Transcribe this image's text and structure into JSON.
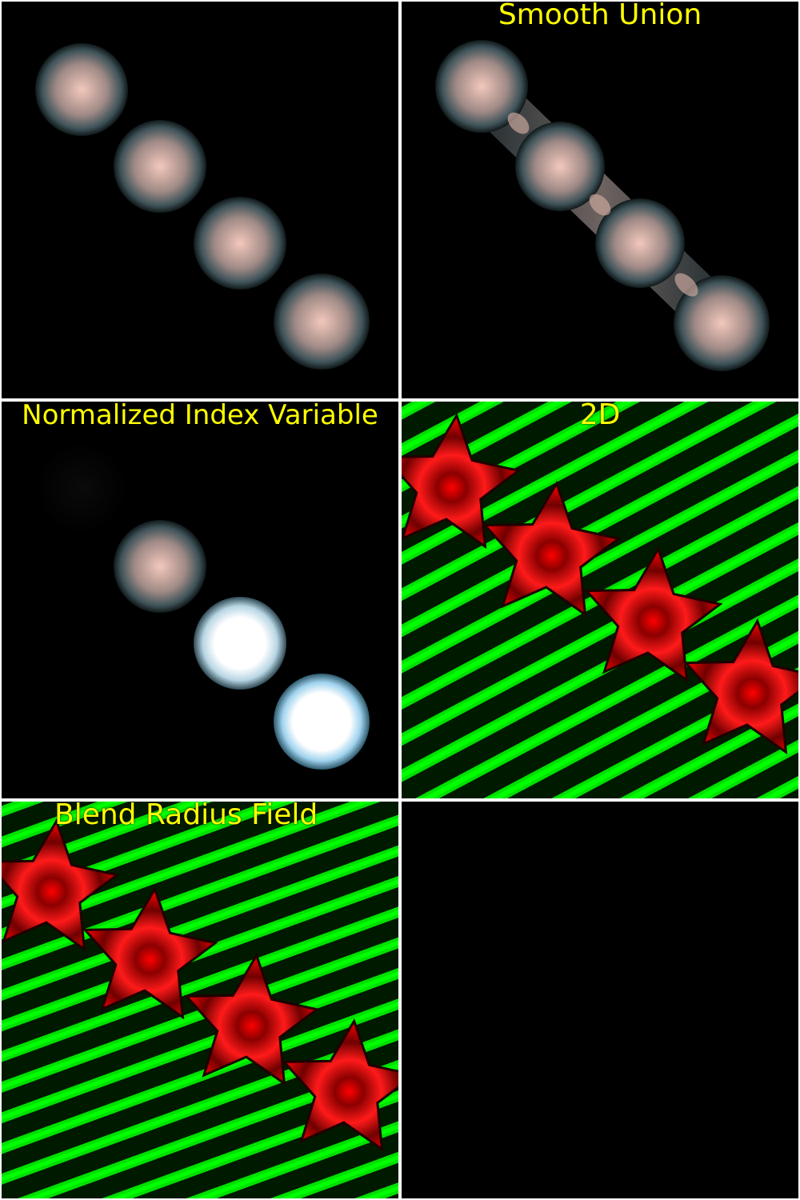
{
  "panels": [
    {
      "id": "spheres",
      "label": ""
    },
    {
      "id": "smooth-union",
      "label": "Smooth Union"
    },
    {
      "id": "normalized-index",
      "label": "Normalized Index Variable"
    },
    {
      "id": "2d",
      "label": "2D"
    },
    {
      "id": "blend-radius",
      "label": "Blend Radius Field"
    },
    {
      "id": "empty",
      "label": ""
    }
  ],
  "colors": {
    "label": "#ffff00",
    "sphere": "#f3c8bc",
    "sphere_rim": "#5d7d86",
    "bright_sphere": "#ffffff",
    "bright_rim": "#8fc9e6",
    "stripe_green": "#00ff00",
    "star_red": "#ff0000",
    "background": "#000000"
  }
}
